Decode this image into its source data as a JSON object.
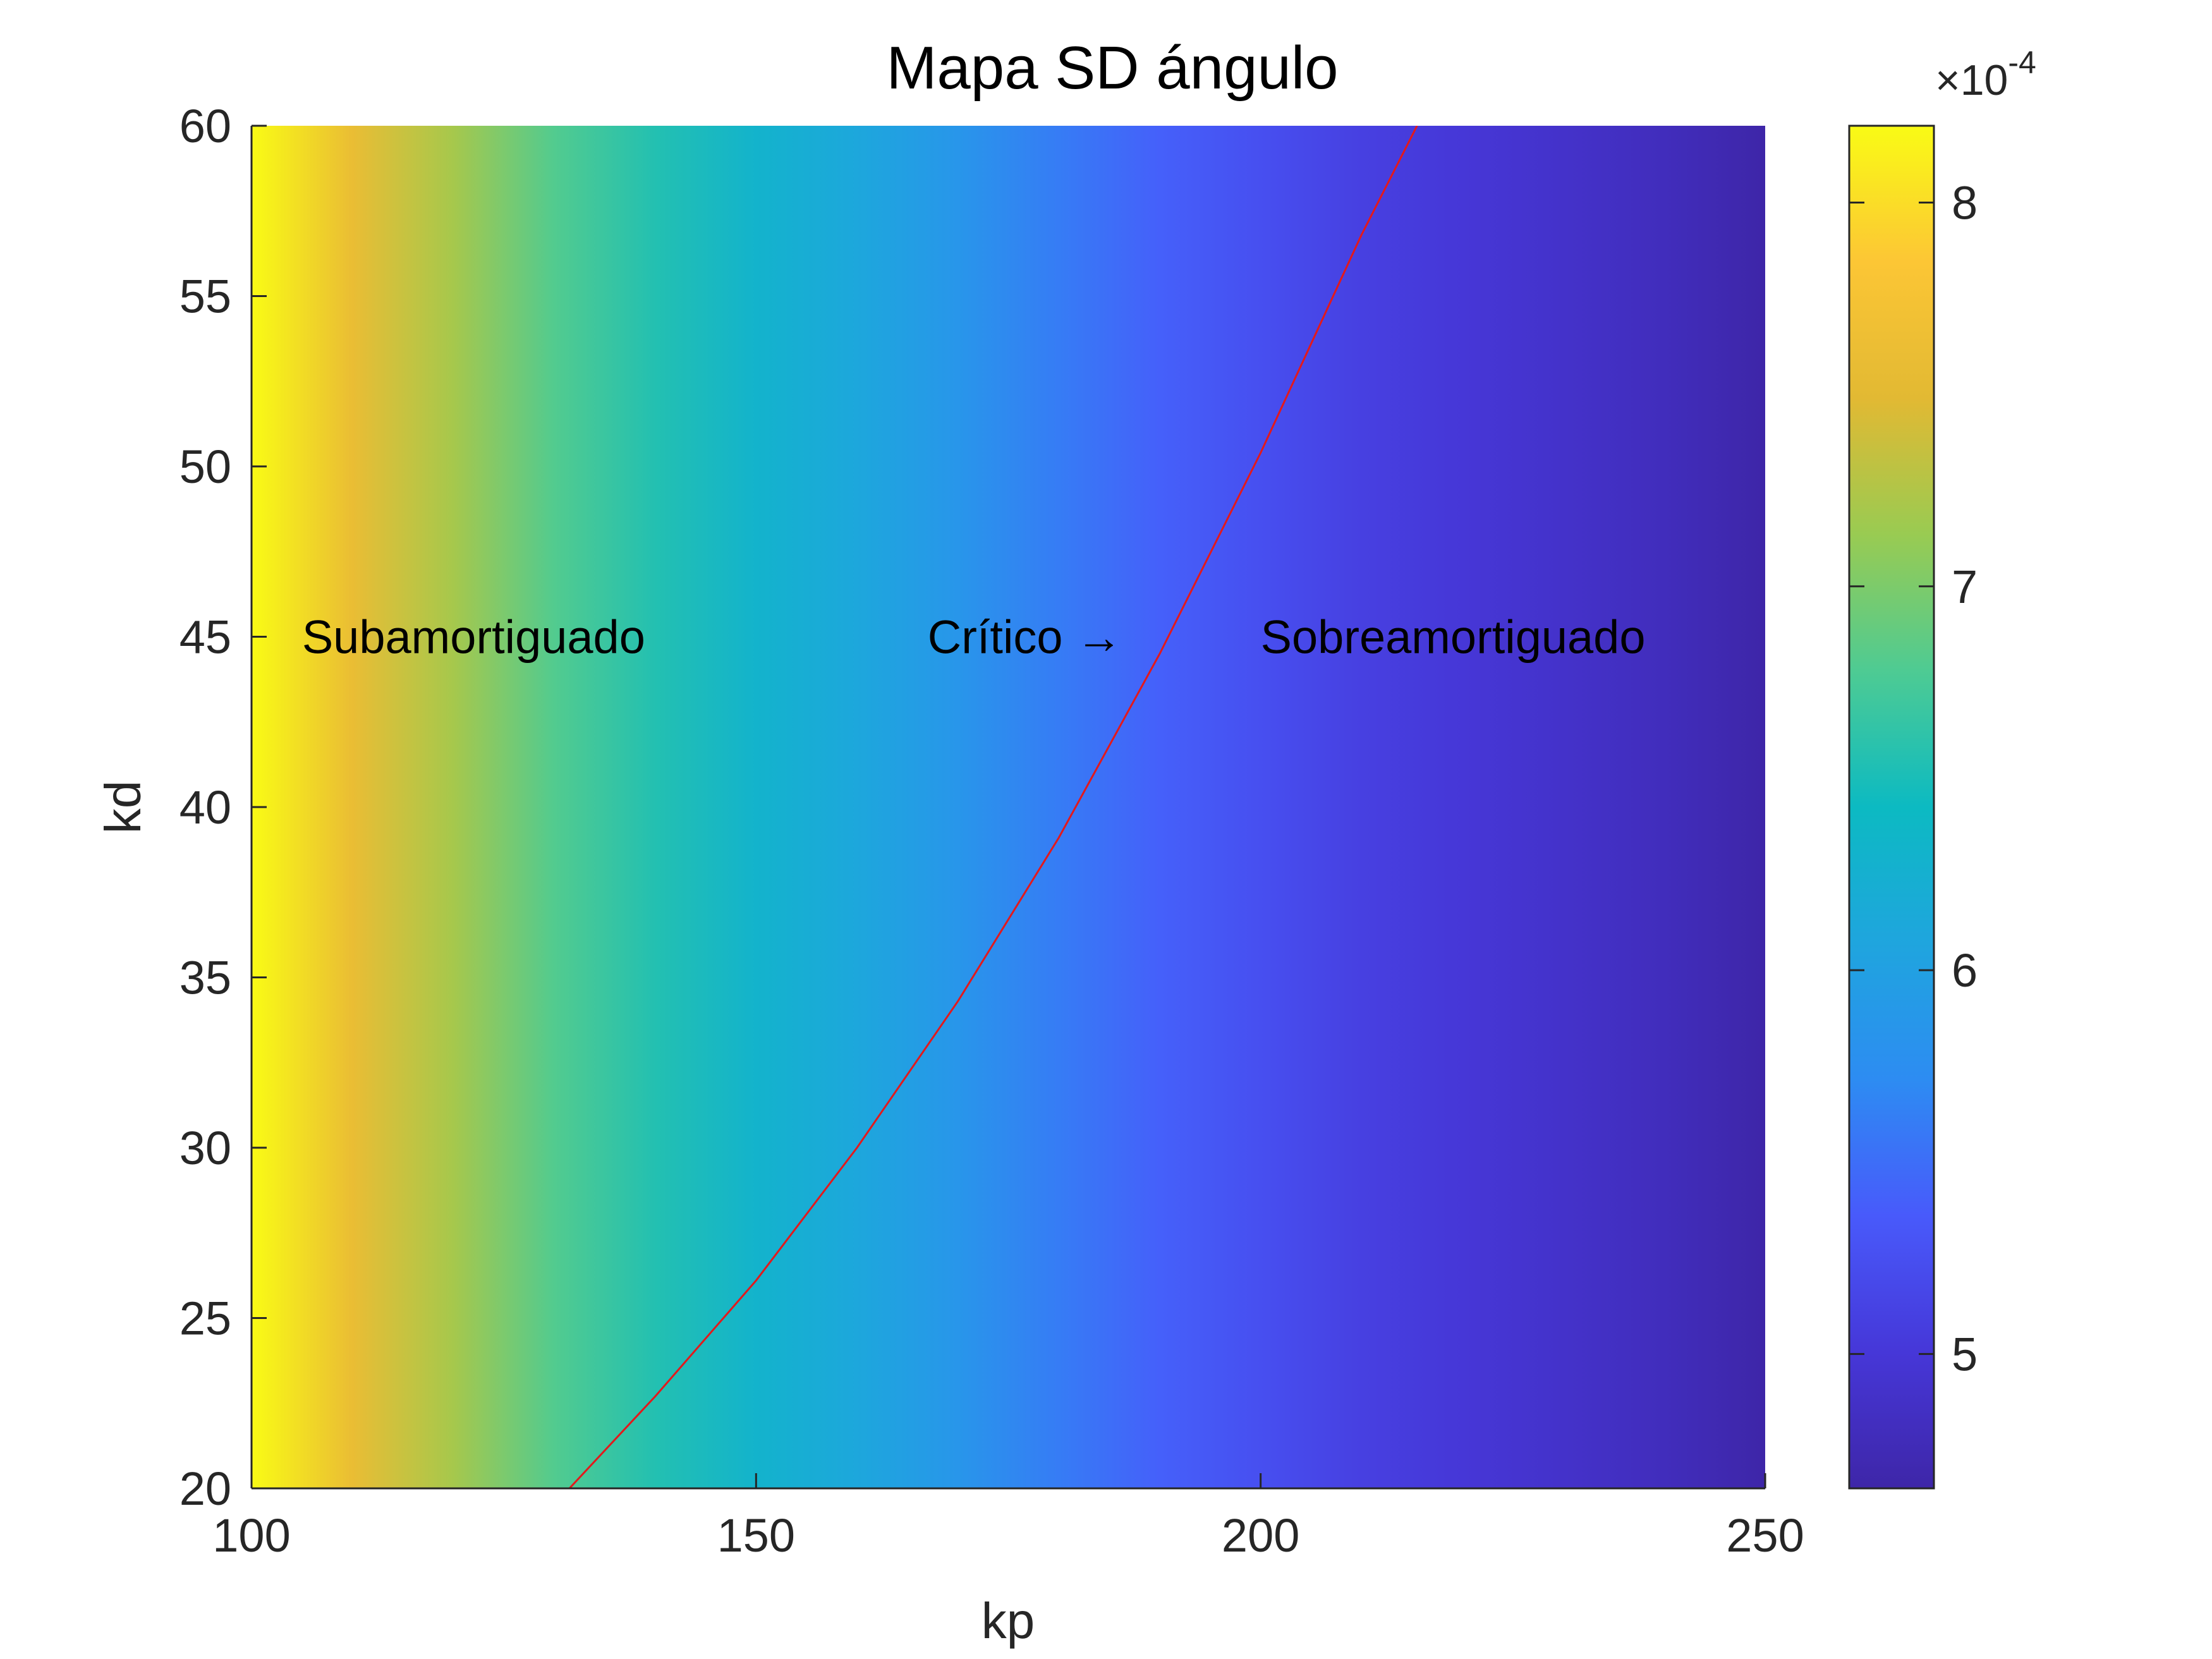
{
  "chart_data": {
    "type": "heatmap",
    "title": "Mapa SD ángulo",
    "xlabel": "kp",
    "ylabel": "kd",
    "xlim": [
      100,
      250
    ],
    "ylim": [
      20,
      60
    ],
    "xticks": [
      100,
      150,
      200,
      250
    ],
    "yticks": [
      20,
      25,
      30,
      35,
      40,
      45,
      50,
      55,
      60
    ],
    "xtick_labels": [
      "100",
      "150",
      "200",
      "250"
    ],
    "ytick_labels": [
      "20",
      "25",
      "30",
      "35",
      "40",
      "45",
      "50",
      "55",
      "60"
    ],
    "colormap": "parula",
    "heatmap_profile": {
      "kp": [
        100,
        110,
        120,
        130,
        140,
        150,
        160,
        170,
        180,
        190,
        200,
        210,
        220,
        230,
        240,
        250
      ],
      "value": [
        8.2,
        7.6,
        7.2,
        6.8,
        6.55,
        6.3,
        6.1,
        5.85,
        5.6,
        5.4,
        5.25,
        5.1,
        5.0,
        4.9,
        4.8,
        4.65
      ]
    },
    "colorbar": {
      "multiplier_label": "×10",
      "multiplier_exponent": "-4",
      "range": [
        4.65,
        8.2
      ],
      "ticks": [
        5,
        6,
        7,
        8
      ],
      "tick_labels": [
        "5",
        "6",
        "7",
        "8"
      ]
    },
    "critical_curve": {
      "color": "#e3191c",
      "kp": [
        131.5,
        140,
        150,
        160,
        170,
        180,
        190,
        200,
        210,
        215.5
      ],
      "kd": [
        20,
        22.7,
        26.1,
        30.0,
        34.3,
        39.1,
        44.5,
        50.4,
        56.8,
        60
      ]
    },
    "annotations": [
      {
        "text": "Subamortiguado",
        "kp": 105,
        "kd": 45,
        "align": "left"
      },
      {
        "text": "Crítico →",
        "kp": 167,
        "kd": 45,
        "align": "left"
      },
      {
        "text": "Sobreamortiguado",
        "kp": 200,
        "kd": 45,
        "align": "left"
      }
    ]
  }
}
